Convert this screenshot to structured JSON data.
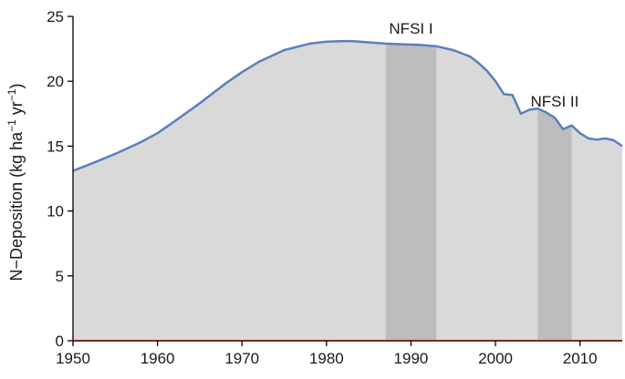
{
  "chart_data": {
    "type": "area",
    "title": "",
    "xlabel": "",
    "ylabel": {
      "base": "N−Deposition (kg ha",
      "sup1": "−1",
      "mid": " yr",
      "sup2": "−1",
      "end": ")"
    },
    "xlim": [
      1950,
      2015
    ],
    "ylim": [
      0,
      25
    ],
    "xticks": [
      1950,
      1960,
      1970,
      1980,
      1990,
      2000,
      2010
    ],
    "yticks": [
      0,
      5,
      10,
      15,
      20,
      25
    ],
    "grid": false,
    "colors": {
      "line": "#5b7fbe",
      "fill": "#d9d9d9",
      "highlight": "#bdbdbd",
      "baseline": "#7a2a1a"
    },
    "series": [
      {
        "x": [
          1950,
          1952,
          1955,
          1958,
          1960,
          1962,
          1965,
          1968,
          1970,
          1972,
          1975,
          1978,
          1980,
          1982,
          1983,
          1985,
          1987,
          1989,
          1991,
          1993,
          1995,
          1997,
          1998,
          1999,
          2000,
          2001,
          2002,
          2003,
          2004,
          2005,
          2006,
          2007,
          2008,
          2009,
          2010,
          2011,
          2012,
          2013,
          2014,
          2015
        ],
        "values": [
          13.1,
          13.6,
          14.4,
          15.3,
          16.0,
          16.9,
          18.3,
          19.8,
          20.7,
          21.5,
          22.4,
          22.9,
          23.05,
          23.1,
          23.1,
          23.0,
          22.9,
          22.85,
          22.8,
          22.7,
          22.4,
          21.9,
          21.4,
          20.8,
          20.0,
          19.0,
          18.95,
          17.5,
          17.8,
          17.9,
          17.6,
          17.2,
          16.3,
          16.6,
          16.0,
          15.6,
          15.5,
          15.6,
          15.45,
          15.0
        ]
      }
    ],
    "highlights": [
      {
        "label": "NFSI I",
        "x_start": 1987,
        "x_end": 1993
      },
      {
        "label": "NFSI II",
        "x_start": 2005,
        "x_end": 2009
      }
    ]
  }
}
